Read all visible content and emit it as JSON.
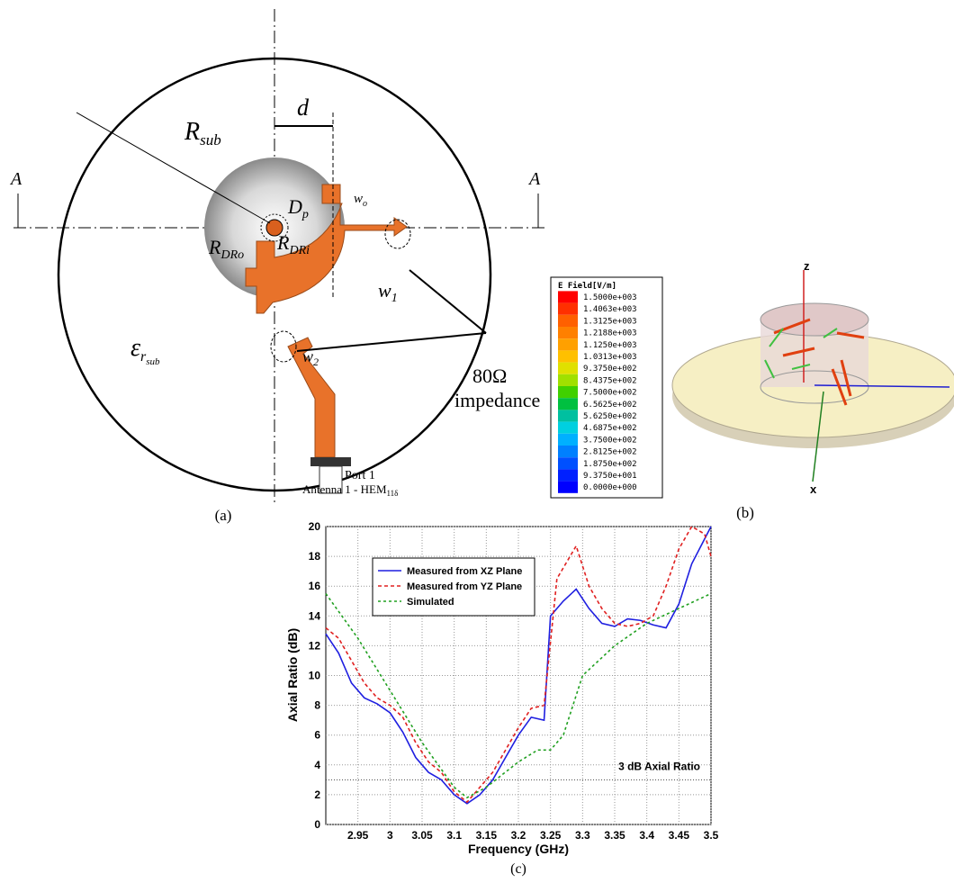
{
  "panel_a": {
    "A_left": "A",
    "A_right": "A",
    "R_sub": [
      "R",
      "sub"
    ],
    "d": "d",
    "D_p": [
      "D",
      "p"
    ],
    "w_o": [
      "w",
      "o"
    ],
    "R_DRo": [
      "R",
      "DRo"
    ],
    "R_DRi": [
      "R",
      "DRi"
    ],
    "w_1": [
      "w",
      "1"
    ],
    "w_2": [
      "w",
      "2"
    ],
    "eps": [
      "ε",
      "r",
      "sub"
    ],
    "impedance_value": "80Ω",
    "impedance_text": "impedance",
    "port": "Port 1",
    "antenna": [
      "Antenna 1 - HEM",
      "11δ"
    ],
    "caption": "(a)"
  },
  "panel_b": {
    "colorbar_title": "E Field[V/m]",
    "colorbar_labels": [
      "1.5000e+003",
      "1.4063e+003",
      "1.3125e+003",
      "1.2188e+003",
      "1.1250e+003",
      "1.0313e+003",
      "9.3750e+002",
      "8.4375e+002",
      "7.5000e+002",
      "6.5625e+002",
      "5.6250e+002",
      "4.6875e+002",
      "3.7500e+002",
      "2.8125e+002",
      "1.8750e+002",
      "9.3750e+001",
      "0.0000e+000"
    ],
    "z": "z",
    "x": "x",
    "caption": "(b)"
  },
  "chart_data": {
    "type": "line",
    "xlabel": "Frequency (GHz)",
    "ylabel": "Axial Ratio (dB)",
    "caption": "(c)",
    "xlim": [
      2.9,
      3.5
    ],
    "ylim": [
      0,
      20
    ],
    "xticks": [
      2.95,
      {
        "value": 3.0,
        "label": "3"
      },
      3.05,
      3.1,
      3.15,
      3.2,
      3.25,
      3.3,
      3.35,
      3.4,
      3.45,
      3.5
    ],
    "yticks": [
      0,
      2,
      4,
      6,
      8,
      10,
      12,
      14,
      16,
      18,
      20
    ],
    "grid": true,
    "hline": 3,
    "hline_label": "3 dB Axial Ratio",
    "series": [
      {
        "name": "Measured from XZ Plane",
        "color": "#1f1fe0",
        "dash": "none",
        "x": [
          2.9,
          2.92,
          2.94,
          2.96,
          2.98,
          3.0,
          3.02,
          3.04,
          3.06,
          3.08,
          3.1,
          3.12,
          3.14,
          3.16,
          3.18,
          3.2,
          3.22,
          3.24,
          3.25,
          3.27,
          3.29,
          3.31,
          3.33,
          3.35,
          3.37,
          3.39,
          3.41,
          3.43,
          3.45,
          3.47,
          3.5
        ],
        "values": [
          12.8,
          11.5,
          9.5,
          8.5,
          8.1,
          7.5,
          6.2,
          4.5,
          3.5,
          3.0,
          2.0,
          1.4,
          2.0,
          3.0,
          4.5,
          6.0,
          7.2,
          7.0,
          14.0,
          15.0,
          15.8,
          14.5,
          13.5,
          13.3,
          13.8,
          13.7,
          13.4,
          13.2,
          14.8,
          17.5,
          20
        ]
      },
      {
        "name": "Measured from YZ Plane",
        "color": "#e02020",
        "dash": "4 3",
        "x": [
          2.9,
          2.92,
          2.94,
          2.96,
          2.98,
          3.0,
          3.02,
          3.04,
          3.06,
          3.08,
          3.1,
          3.12,
          3.14,
          3.16,
          3.18,
          3.2,
          3.22,
          3.24,
          3.26,
          3.29,
          3.31,
          3.33,
          3.35,
          3.37,
          3.39,
          3.41,
          3.43,
          3.45,
          3.47,
          3.49,
          3.5
        ],
        "values": [
          13.2,
          12.5,
          11.0,
          9.5,
          8.5,
          8.0,
          7.2,
          5.5,
          4.2,
          3.5,
          2.2,
          1.5,
          2.5,
          3.5,
          5.0,
          6.5,
          7.8,
          8.0,
          16.5,
          18.7,
          16.0,
          14.5,
          13.5,
          13.3,
          13.5,
          14.0,
          16.0,
          18.5,
          20.0,
          19.5,
          18.0
        ]
      },
      {
        "name": "Simulated",
        "color": "#20a020",
        "dash": "3 3",
        "x": [
          2.9,
          2.95,
          3.0,
          3.05,
          3.1,
          3.12,
          3.15,
          3.2,
          3.23,
          3.25,
          3.27,
          3.3,
          3.35,
          3.4,
          3.45,
          3.5
        ],
        "values": [
          15.5,
          12.5,
          9.0,
          5.5,
          2.5,
          1.8,
          2.5,
          4.2,
          5.0,
          5.0,
          6.0,
          10.0,
          12.0,
          13.5,
          14.5,
          15.5
        ]
      }
    ]
  }
}
